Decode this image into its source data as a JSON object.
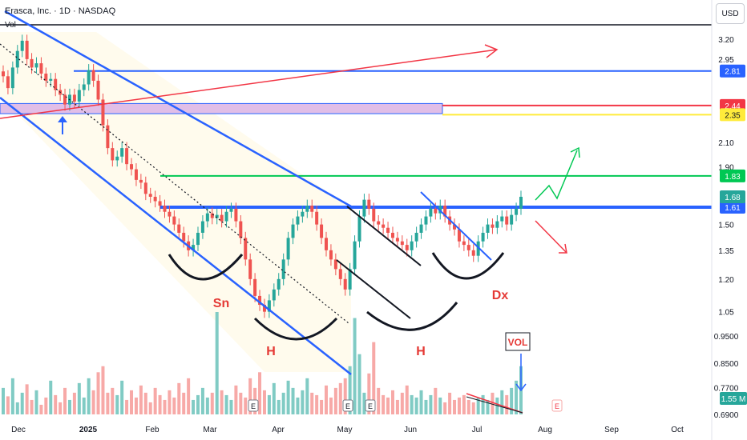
{
  "header": {
    "symbol_line": "Erasca, Inc. · 1D · NASDAQ",
    "volume_label": "Vol",
    "currency_button": "USD"
  },
  "colors": {
    "up_candle": "#26a69a",
    "down_candle": "#ef5350",
    "channel": "#2962ff",
    "support": "#2962ff",
    "resistance_green": "#00c853",
    "resistance_red": "#f23645",
    "resistance_yellow": "#ffeb3b",
    "zone": "#e1bee7"
  },
  "chart_data": {
    "type": "candlestick",
    "title": "Erasca, Inc. · 1D · NASDAQ",
    "x_ticks": [
      "Dec",
      "2025",
      "Feb",
      "Mar",
      "Apr",
      "May",
      "Jun",
      "Jul",
      "Aug",
      "Sep",
      "Oct"
    ],
    "y_ticks": [
      "3.20",
      "2.95",
      "2.81",
      "2.44",
      "2.35",
      "2.10",
      "1.90",
      "1.83",
      "1.68",
      "1.61",
      "1.50",
      "1.35",
      "1.20",
      "1.05",
      "0.9500",
      "0.8500",
      "0.7700",
      "0.6900"
    ],
    "y_range": [
      0.66,
      3.32
    ],
    "y_scale": "log",
    "horizontal_levels": [
      {
        "label": "2.81",
        "value": 2.81,
        "color": "#2962ff"
      },
      {
        "label": "2.44",
        "value": 2.44,
        "color": "#f23645"
      },
      {
        "label": "2.35",
        "value": 2.35,
        "color": "#ffeb3b"
      },
      {
        "label": "1.83",
        "value": 1.83,
        "color": "#00c853"
      },
      {
        "label": "1.61",
        "value": 1.61,
        "color": "#2962ff"
      }
    ],
    "price_badges": [
      {
        "label": "1.68",
        "value": 1.68,
        "color": "#26a69a"
      },
      {
        "label": "1.55 M",
        "color": "#26a69a"
      }
    ],
    "annotations": [
      "Sn",
      "H",
      "H",
      "Dx",
      "VOL",
      "E",
      "E",
      "E",
      "E"
    ],
    "close_series": [
      2.75,
      2.62,
      2.85,
      3.05,
      3.18,
      2.95,
      2.85,
      2.9,
      2.78,
      2.7,
      2.72,
      2.6,
      2.55,
      2.45,
      2.55,
      2.48,
      2.6,
      2.66,
      2.82,
      2.7,
      2.5,
      2.25,
      2.05,
      1.95,
      1.98,
      2.05,
      1.92,
      1.88,
      1.8,
      1.78,
      1.7,
      1.68,
      1.65,
      1.62,
      1.58,
      1.55,
      1.5,
      1.45,
      1.4,
      1.35,
      1.38,
      1.45,
      1.52,
      1.57,
      1.54,
      1.56,
      1.52,
      1.58,
      1.6,
      1.52,
      1.42,
      1.3,
      1.2,
      1.12,
      1.08,
      1.05,
      1.1,
      1.15,
      1.2,
      1.3,
      1.42,
      1.5,
      1.55,
      1.58,
      1.62,
      1.58,
      1.5,
      1.42,
      1.35,
      1.3,
      1.25,
      1.2,
      1.15,
      1.25,
      1.4,
      1.55,
      1.66,
      1.6,
      1.52,
      1.5,
      1.48,
      1.45,
      1.42,
      1.4,
      1.38,
      1.35,
      1.4,
      1.45,
      1.5,
      1.55,
      1.6,
      1.57,
      1.62,
      1.55,
      1.5,
      1.47,
      1.4,
      1.38,
      1.35,
      1.32,
      1.4,
      1.45,
      1.5,
      1.48,
      1.52,
      1.55,
      1.5,
      1.56,
      1.6,
      1.68
    ],
    "volume_series": [
      22,
      15,
      30,
      10,
      18,
      25,
      12,
      20,
      8,
      14,
      28,
      16,
      10,
      22,
      12,
      18,
      26,
      14,
      30,
      20,
      35,
      40,
      18,
      22,
      16,
      28,
      12,
      20,
      14,
      24,
      18,
      10,
      22,
      16,
      12,
      20,
      14,
      26,
      18,
      30,
      12,
      16,
      22,
      14,
      18,
      85,
      20,
      16,
      12,
      24,
      18,
      14,
      30,
      22,
      35,
      20,
      16,
      26,
      12,
      18,
      28,
      22,
      14,
      20,
      30,
      18,
      16,
      12,
      24,
      14,
      22,
      26,
      30,
      40,
      80,
      50,
      18,
      34,
      60,
      22,
      16,
      14,
      20,
      12,
      18,
      24,
      16,
      14,
      20,
      12,
      16,
      22,
      14,
      10,
      18,
      12,
      14,
      16,
      12,
      10,
      14,
      16,
      12,
      18,
      14,
      20,
      16,
      22,
      28,
      40
    ]
  }
}
